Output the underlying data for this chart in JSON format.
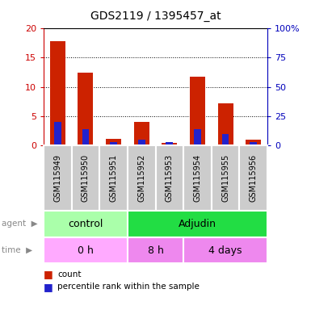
{
  "title": "GDS2119 / 1395457_at",
  "samples": [
    "GSM115949",
    "GSM115950",
    "GSM115951",
    "GSM115952",
    "GSM115953",
    "GSM115954",
    "GSM115955",
    "GSM115956"
  ],
  "count_values": [
    17.8,
    12.4,
    1.1,
    4.0,
    0.5,
    11.7,
    7.2,
    1.0
  ],
  "percentile_values_pct": [
    20,
    14,
    3,
    5,
    3,
    14,
    10,
    3
  ],
  "left_ylim": [
    0,
    20
  ],
  "right_ylim": [
    0,
    100
  ],
  "left_yticks": [
    0,
    5,
    10,
    15,
    20
  ],
  "right_yticks": [
    0,
    25,
    50,
    75,
    100
  ],
  "right_yticklabels": [
    "0",
    "25",
    "50",
    "75",
    "100%"
  ],
  "left_tick_color": "#cc0000",
  "right_tick_color": "#0000bb",
  "agent_groups": [
    {
      "label": "control",
      "span": [
        0,
        3
      ],
      "color": "#aaffaa"
    },
    {
      "label": "Adjudin",
      "span": [
        3,
        8
      ],
      "color": "#22dd44"
    }
  ],
  "time_groups": [
    {
      "label": "0 h",
      "span": [
        0,
        3
      ],
      "color": "#ffaaff"
    },
    {
      "label": "8 h",
      "span": [
        3,
        5
      ],
      "color": "#ee88ee"
    },
    {
      "label": "4 days",
      "span": [
        5,
        8
      ],
      "color": "#ee88ee"
    }
  ],
  "bar_color_red": "#cc2200",
  "bar_color_blue": "#2222cc",
  "grid_color": "black",
  "background_color": "white",
  "legend_items": [
    {
      "color": "#cc2200",
      "label": "count"
    },
    {
      "color": "#2222cc",
      "label": "percentile rank within the sample"
    }
  ],
  "agent_label": "agent",
  "time_label": "time",
  "tick_gray_bg": "#cccccc"
}
